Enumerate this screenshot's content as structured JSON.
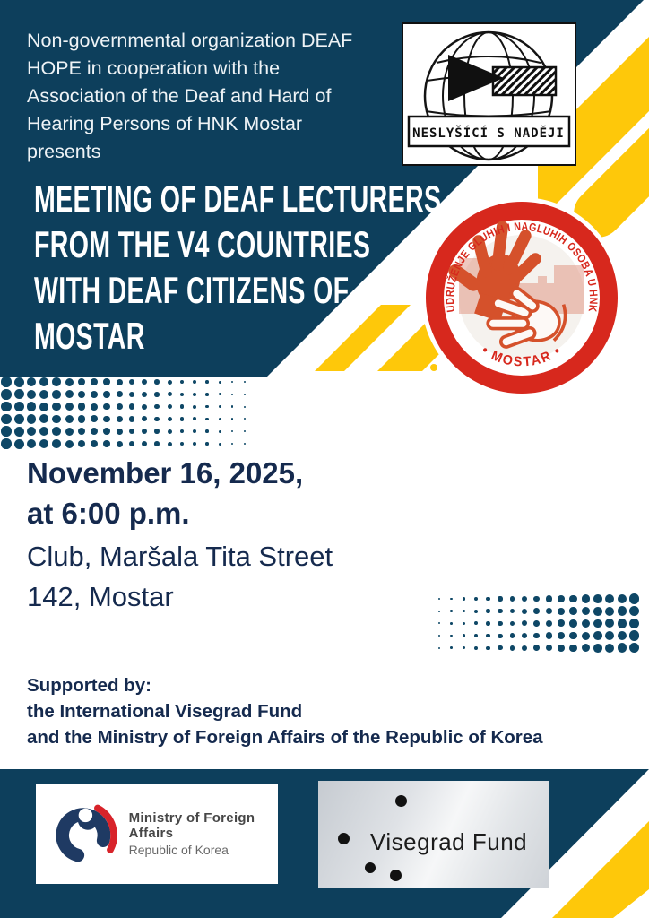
{
  "poster": {
    "intro_lines": [
      "Non-governmental organization DEAF",
      "HOPE in cooperation with the",
      "Association of the Deaf and Hard of",
      "Hearing Persons of HNK Mostar",
      "presents"
    ],
    "title_lines": [
      "MEETING OF DEAF LECTURERS",
      "FROM THE V4 COUNTRIES",
      "WITH DEAF CITIZENS OF",
      "MOSTAR"
    ],
    "datetime_lines": [
      "November 16, 2025,",
      "at 6:00 p.m."
    ],
    "location_lines": [
      "Club, Maršala Tita Street",
      "142, Mostar"
    ],
    "supported_lines": [
      "Supported by:",
      "the International Visegrad Fund",
      "and the Ministry of Foreign Affairs of the Republic of Korea"
    ]
  },
  "logos": {
    "deaf_hope": {
      "banner": "NESLYŠÍCÍ S NADĚJI"
    },
    "mostar_association": {
      "ring_text_top": "UDRUŽENJE GLUHIH I NAGLUHIH OSOBA U HNK",
      "ring_text_bottom": "• MOSTAR •"
    },
    "korea_mofa": {
      "line1": "Ministry of Foreign Affairs",
      "line2": "Republic of Korea"
    },
    "visegrad": {
      "label": "Visegrad Fund"
    }
  },
  "colors": {
    "navy": "#0d3f5c",
    "text_navy": "#152a4e",
    "yellow": "#fec80a",
    "stamp_red": "#d7281d",
    "hand_orange": "#d5512b"
  }
}
